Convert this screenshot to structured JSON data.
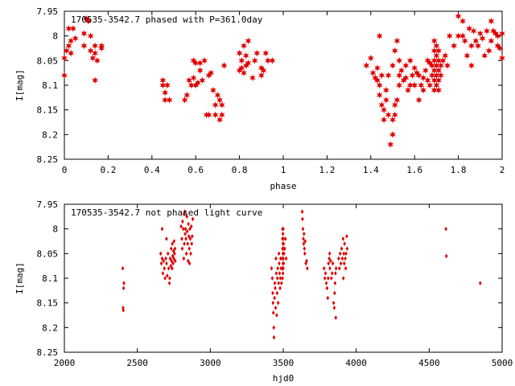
{
  "colors": {
    "points": "#e00000",
    "axes": "#000000",
    "background": "#ffffff"
  },
  "chart_data": [
    {
      "type": "scatter",
      "title": "170535-3542.7 phased with P=361.0day",
      "xlabel": "phase",
      "ylabel": "I[mag]",
      "xlim": [
        0,
        2
      ],
      "ylim": [
        7.95,
        8.25
      ],
      "y_inverted": true,
      "grid": false,
      "marker": "star",
      "xticks": [
        "0",
        "0.2",
        "0.4",
        "0.6",
        "0.8",
        "1",
        "1.2",
        "1.4",
        "1.6",
        "1.8",
        "2"
      ],
      "yticks": [
        "7.95",
        "8",
        "8.05",
        "8.1",
        "8.15",
        "8.2",
        "8.25"
      ],
      "points": [
        [
          0.0,
          8.08
        ],
        [
          0.0,
          8.045
        ],
        [
          0.01,
          8.03
        ],
        [
          0.02,
          7.985
        ],
        [
          0.02,
          8.02
        ],
        [
          0.03,
          8.01
        ],
        [
          0.03,
          8.035
        ],
        [
          0.04,
          7.985
        ],
        [
          0.05,
          8.005
        ],
        [
          0.09,
          7.995
        ],
        [
          0.09,
          8.02
        ],
        [
          0.1,
          7.965
        ],
        [
          0.11,
          7.97
        ],
        [
          0.12,
          8.0
        ],
        [
          0.12,
          8.03
        ],
        [
          0.13,
          8.045
        ],
        [
          0.14,
          8.035
        ],
        [
          0.14,
          8.02
        ],
        [
          0.15,
          8.05
        ],
        [
          0.14,
          8.09
        ],
        [
          0.17,
          8.02
        ],
        [
          0.17,
          8.025
        ],
        [
          0.45,
          8.09
        ],
        [
          0.45,
          8.1
        ],
        [
          0.46,
          8.13
        ],
        [
          0.46,
          8.115
        ],
        [
          0.47,
          8.1
        ],
        [
          0.48,
          8.13
        ],
        [
          0.55,
          8.13
        ],
        [
          0.56,
          8.12
        ],
        [
          0.57,
          8.09
        ],
        [
          0.58,
          8.1
        ],
        [
          0.59,
          8.05
        ],
        [
          0.59,
          8.085
        ],
        [
          0.6,
          8.1
        ],
        [
          0.61,
          8.095
        ],
        [
          0.6,
          8.055
        ],
        [
          0.62,
          8.07
        ],
        [
          0.62,
          8.055
        ],
        [
          0.63,
          8.09
        ],
        [
          0.64,
          8.05
        ],
        [
          0.65,
          8.16
        ],
        [
          0.66,
          8.16
        ],
        [
          0.66,
          8.08
        ],
        [
          0.67,
          8.075
        ],
        [
          0.68,
          8.11
        ],
        [
          0.69,
          8.16
        ],
        [
          0.69,
          8.14
        ],
        [
          0.7,
          8.12
        ],
        [
          0.71,
          8.13
        ],
        [
          0.71,
          8.17
        ],
        [
          0.72,
          8.14
        ],
        [
          0.72,
          8.16
        ],
        [
          0.73,
          8.06
        ],
        [
          0.8,
          8.035
        ],
        [
          0.8,
          8.07
        ],
        [
          0.81,
          8.05
        ],
        [
          0.81,
          8.065
        ],
        [
          0.82,
          8.075
        ],
        [
          0.82,
          8.02
        ],
        [
          0.83,
          8.04
        ],
        [
          0.83,
          8.06
        ],
        [
          0.84,
          8.01
        ],
        [
          0.84,
          8.055
        ],
        [
          0.86,
          8.085
        ],
        [
          0.87,
          8.05
        ],
        [
          0.88,
          8.035
        ],
        [
          0.9,
          8.065
        ],
        [
          0.9,
          8.08
        ],
        [
          0.91,
          8.07
        ],
        [
          0.92,
          8.035
        ],
        [
          0.93,
          8.05
        ],
        [
          0.95,
          8.05
        ],
        [
          1.38,
          8.06
        ],
        [
          1.4,
          8.045
        ],
        [
          1.41,
          8.075
        ],
        [
          1.42,
          8.085
        ],
        [
          1.43,
          8.065
        ],
        [
          1.43,
          8.09
        ],
        [
          1.44,
          8.1
        ],
        [
          1.44,
          8.12
        ],
        [
          1.45,
          8.08
        ],
        [
          1.45,
          8.14
        ],
        [
          1.46,
          8.17
        ],
        [
          1.46,
          8.15
        ],
        [
          1.47,
          8.13
        ],
        [
          1.47,
          8.11
        ],
        [
          1.48,
          8.08
        ],
        [
          1.48,
          8.16
        ],
        [
          1.49,
          8.22
        ],
        [
          1.5,
          8.2
        ],
        [
          1.5,
          8.17
        ],
        [
          1.51,
          8.16
        ],
        [
          1.51,
          8.14
        ],
        [
          1.52,
          8.13
        ],
        [
          1.53,
          8.08
        ],
        [
          1.53,
          8.1
        ],
        [
          1.54,
          8.07
        ],
        [
          1.55,
          8.09
        ],
        [
          1.56,
          8.085
        ],
        [
          1.56,
          8.06
        ],
        [
          1.57,
          8.11
        ],
        [
          1.58,
          8.05
        ],
        [
          1.58,
          8.1
        ],
        [
          1.59,
          8.08
        ],
        [
          1.6,
          8.1
        ],
        [
          1.6,
          8.065
        ],
        [
          1.61,
          8.075
        ],
        [
          1.62,
          8.08
        ],
        [
          1.62,
          8.13
        ],
        [
          1.63,
          8.1
        ],
        [
          1.64,
          8.085
        ],
        [
          1.64,
          8.11
        ],
        [
          1.65,
          8.07
        ],
        [
          1.66,
          8.05
        ],
        [
          1.66,
          8.09
        ],
        [
          1.67,
          8.1
        ],
        [
          1.67,
          8.055
        ],
        [
          1.68,
          8.06
        ],
        [
          1.68,
          8.08
        ],
        [
          1.44,
          8.0
        ],
        [
          1.5,
          8.06
        ],
        [
          1.51,
          8.03
        ],
        [
          1.52,
          8.01
        ],
        [
          1.53,
          8.05
        ],
        [
          1.69,
          8.01
        ],
        [
          1.69,
          8.03
        ],
        [
          1.69,
          8.05
        ],
        [
          1.69,
          8.07
        ],
        [
          1.69,
          8.09
        ],
        [
          1.69,
          8.11
        ],
        [
          1.7,
          8.02
        ],
        [
          1.7,
          8.04
        ],
        [
          1.7,
          8.06
        ],
        [
          1.7,
          8.08
        ],
        [
          1.7,
          8.1
        ],
        [
          1.71,
          8.03
        ],
        [
          1.71,
          8.05
        ],
        [
          1.71,
          8.07
        ],
        [
          1.71,
          8.09
        ],
        [
          1.71,
          8.11
        ],
        [
          1.72,
          8.06
        ],
        [
          1.72,
          8.08
        ],
        [
          1.73,
          8.05
        ],
        [
          1.74,
          8.04
        ],
        [
          1.75,
          8.06
        ],
        [
          1.76,
          8.0
        ],
        [
          1.78,
          8.02
        ],
        [
          1.8,
          7.96
        ],
        [
          1.8,
          8.0
        ],
        [
          1.82,
          7.97
        ],
        [
          1.82,
          8.0
        ],
        [
          1.83,
          8.01
        ],
        [
          1.84,
          8.04
        ],
        [
          1.85,
          7.985
        ],
        [
          1.86,
          8.02
        ],
        [
          1.86,
          8.06
        ],
        [
          1.87,
          7.99
        ],
        [
          1.88,
          8.01
        ],
        [
          1.89,
          8.02
        ],
        [
          1.9,
          7.995
        ],
        [
          1.91,
          8.005
        ],
        [
          1.92,
          8.04
        ],
        [
          1.93,
          7.99
        ],
        [
          1.94,
          8.03
        ],
        [
          1.95,
          7.97
        ],
        [
          1.95,
          8.01
        ],
        [
          1.96,
          7.99
        ],
        [
          1.97,
          7.995
        ],
        [
          1.98,
          8.0
        ],
        [
          1.98,
          8.02
        ],
        [
          1.99,
          8.025
        ],
        [
          2.0,
          8.045
        ],
        [
          2.0,
          7.995
        ]
      ]
    },
    {
      "type": "scatter",
      "title": "170535-3542.7 not phased light curve",
      "xlabel": "hjd0",
      "ylabel": "I[mag]",
      "xlim": [
        2000,
        5000
      ],
      "ylim": [
        7.95,
        8.25
      ],
      "y_inverted": true,
      "grid": false,
      "marker": "diamond",
      "xticks": [
        "2000",
        "2500",
        "3000",
        "3500",
        "4000",
        "4500",
        "5000"
      ],
      "yticks": [
        "7.95",
        "8",
        "8.05",
        "8.1",
        "8.15",
        "8.2",
        "8.25"
      ],
      "points": [
        [
          2400,
          8.08
        ],
        [
          2402,
          8.16
        ],
        [
          2404,
          8.165
        ],
        [
          2406,
          8.12
        ],
        [
          2408,
          8.11
        ],
        [
          2660,
          8.05
        ],
        [
          2665,
          8.07
        ],
        [
          2670,
          8.06
        ],
        [
          2675,
          8.09
        ],
        [
          2680,
          8.065
        ],
        [
          2685,
          8.08
        ],
        [
          2690,
          8.1
        ],
        [
          2695,
          8.06
        ],
        [
          2700,
          8.07
        ],
        [
          2705,
          8.095
        ],
        [
          2710,
          8.05
        ],
        [
          2715,
          8.08
        ],
        [
          2720,
          8.11
        ],
        [
          2722,
          8.1
        ],
        [
          2725,
          8.06
        ],
        [
          2730,
          8.075
        ],
        [
          2732,
          8.04
        ],
        [
          2735,
          8.065
        ],
        [
          2738,
          8.08
        ],
        [
          2740,
          8.03
        ],
        [
          2742,
          8.055
        ],
        [
          2745,
          8.07
        ],
        [
          2748,
          8.045
        ],
        [
          2750,
          8.06
        ],
        [
          2752,
          8.025
        ],
        [
          2755,
          8.05
        ],
        [
          2758,
          8.04
        ],
        [
          2760,
          8.065
        ],
        [
          2670,
          8.0
        ],
        [
          2700,
          8.02
        ],
        [
          2800,
          7.995
        ],
        [
          2805,
          8.02
        ],
        [
          2808,
          8.04
        ],
        [
          2810,
          7.985
        ],
        [
          2815,
          8.0
        ],
        [
          2818,
          8.06
        ],
        [
          2820,
          7.97
        ],
        [
          2822,
          8.03
        ],
        [
          2825,
          7.965
        ],
        [
          2828,
          8.01
        ],
        [
          2830,
          8.0
        ],
        [
          2833,
          8.02
        ],
        [
          2836,
          8.05
        ],
        [
          2840,
          7.975
        ],
        [
          2842,
          8.005
        ],
        [
          2845,
          8.03
        ],
        [
          2848,
          8.065
        ],
        [
          2850,
          7.99
        ],
        [
          2853,
          8.015
        ],
        [
          2856,
          8.04
        ],
        [
          2858,
          8.07
        ],
        [
          2860,
          8.0
        ],
        [
          2863,
          8.02
        ],
        [
          2866,
          8.05
        ],
        [
          2870,
          7.995
        ],
        [
          2873,
          8.03
        ],
        [
          2876,
          8.015
        ],
        [
          2880,
          7.98
        ],
        [
          3420,
          8.08
        ],
        [
          3425,
          8.1
        ],
        [
          3428,
          8.13
        ],
        [
          3430,
          8.15
        ],
        [
          3432,
          8.17
        ],
        [
          3435,
          8.2
        ],
        [
          3437,
          8.22
        ],
        [
          3440,
          8.14
        ],
        [
          3442,
          8.11
        ],
        [
          3445,
          8.12
        ],
        [
          3448,
          8.16
        ],
        [
          3450,
          8.06
        ],
        [
          3452,
          8.09
        ],
        [
          3455,
          8.175
        ],
        [
          3458,
          8.13
        ],
        [
          3460,
          8.1
        ],
        [
          3462,
          8.08
        ],
        [
          3465,
          8.15
        ],
        [
          3468,
          8.11
        ],
        [
          3470,
          8.05
        ],
        [
          3472,
          8.07
        ],
        [
          3475,
          8.09
        ],
        [
          3478,
          8.12
        ],
        [
          3480,
          8.1
        ],
        [
          3482,
          8.06
        ],
        [
          3485,
          8.08
        ],
        [
          3488,
          8.11
        ],
        [
          3495,
          8.0
        ],
        [
          3495,
          8.02
        ],
        [
          3495,
          8.04
        ],
        [
          3495,
          8.06
        ],
        [
          3495,
          8.08
        ],
        [
          3495,
          8.1
        ],
        [
          3498,
          8.01
        ],
        [
          3498,
          8.03
        ],
        [
          3498,
          8.05
        ],
        [
          3498,
          8.07
        ],
        [
          3498,
          8.09
        ],
        [
          3500,
          8.0
        ],
        [
          3500,
          8.02
        ],
        [
          3500,
          8.04
        ],
        [
          3500,
          8.06
        ],
        [
          3500,
          8.08
        ],
        [
          3502,
          8.03
        ],
        [
          3502,
          8.07
        ],
        [
          3505,
          8.05
        ],
        [
          3510,
          8.04
        ],
        [
          3515,
          8.02
        ],
        [
          3520,
          8.06
        ],
        [
          3630,
          7.965
        ],
        [
          3632,
          7.98
        ],
        [
          3635,
          8.0
        ],
        [
          3638,
          8.02
        ],
        [
          3640,
          8.03
        ],
        [
          3642,
          8.01
        ],
        [
          3645,
          8.04
        ],
        [
          3648,
          8.05
        ],
        [
          3650,
          8.025
        ],
        [
          3655,
          8.07
        ],
        [
          3660,
          8.065
        ],
        [
          3665,
          8.08
        ],
        [
          3780,
          8.08
        ],
        [
          3785,
          8.1
        ],
        [
          3790,
          8.09
        ],
        [
          3795,
          8.11
        ],
        [
          3800,
          8.12
        ],
        [
          3805,
          8.14
        ],
        [
          3808,
          8.1
        ],
        [
          3810,
          8.07
        ],
        [
          3815,
          8.06
        ],
        [
          3818,
          8.05
        ],
        [
          3820,
          8.08
        ],
        [
          3825,
          8.065
        ],
        [
          3830,
          8.1
        ],
        [
          3835,
          8.09
        ],
        [
          3840,
          8.07
        ],
        [
          3845,
          8.15
        ],
        [
          3850,
          8.16
        ],
        [
          3852,
          8.13
        ],
        [
          3855,
          8.11
        ],
        [
          3858,
          8.09
        ],
        [
          3860,
          8.18
        ],
        [
          3862,
          8.08
        ],
        [
          3880,
          8.06
        ],
        [
          3885,
          8.08
        ],
        [
          3890,
          8.05
        ],
        [
          3895,
          8.07
        ],
        [
          3900,
          8.04
        ],
        [
          3905,
          8.06
        ],
        [
          3910,
          8.02
        ],
        [
          3912,
          8.1
        ],
        [
          3915,
          8.05
        ],
        [
          3918,
          8.07
        ],
        [
          3920,
          8.03
        ],
        [
          3925,
          8.06
        ],
        [
          3928,
          8.08
        ],
        [
          3930,
          8.05
        ],
        [
          3935,
          8.015
        ],
        [
          3938,
          8.04
        ],
        [
          4615,
          8.0
        ],
        [
          4618,
          8.055
        ],
        [
          4850,
          8.11
        ]
      ]
    }
  ]
}
